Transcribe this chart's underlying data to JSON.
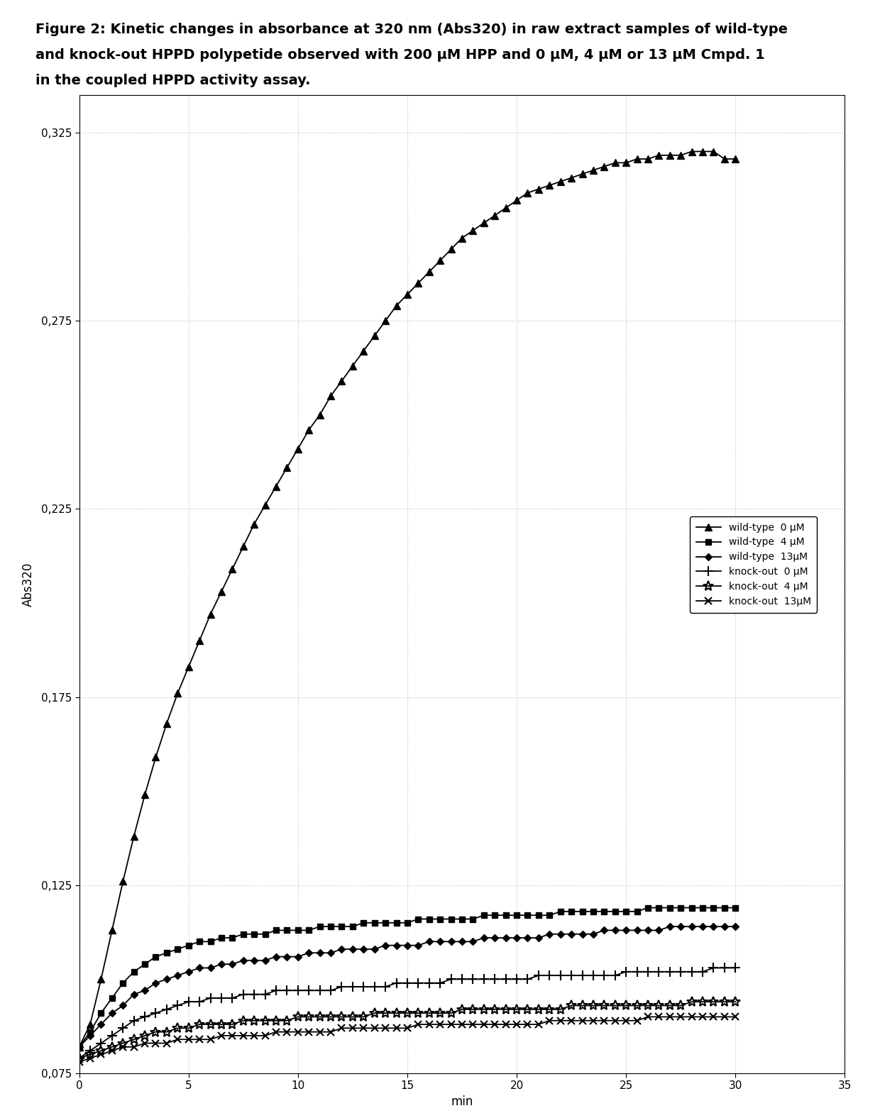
{
  "title_line1": "Figure 2: Kinetic changes in absorbance at 320 nm (Abs320) in raw extract samples of wild-type",
  "title_line2": "and knock-out HPPD polypetide observed with 200 μM HPP and 0 μM, 4 μM or 13 μM Cmpd. 1",
  "title_line3": "in the coupled HPPD activity assay.",
  "xlabel": "min",
  "ylabel": "Abs320",
  "xlim": [
    0,
    35
  ],
  "ylim": [
    0.075,
    0.335
  ],
  "yticks": [
    0.075,
    0.125,
    0.175,
    0.225,
    0.275,
    0.325
  ],
  "xticks": [
    0,
    5,
    10,
    15,
    20,
    25,
    30,
    35
  ],
  "series": [
    {
      "label": "wild-type  0 μM",
      "marker": "^",
      "color": "#000000",
      "x": [
        0,
        0.5,
        1,
        1.5,
        2,
        2.5,
        3,
        3.5,
        4,
        4.5,
        5,
        5.5,
        6,
        6.5,
        7,
        7.5,
        8,
        8.5,
        9,
        9.5,
        10,
        10.5,
        11,
        11.5,
        12,
        12.5,
        13,
        13.5,
        14,
        14.5,
        15,
        15.5,
        16,
        16.5,
        17,
        17.5,
        18,
        18.5,
        19,
        19.5,
        20,
        20.5,
        21,
        21.5,
        22,
        22.5,
        23,
        23.5,
        24,
        24.5,
        25,
        25.5,
        26,
        26.5,
        27,
        27.5,
        28,
        28.5,
        29,
        29.5,
        30
      ],
      "y": [
        0.082,
        0.088,
        0.1,
        0.113,
        0.126,
        0.138,
        0.149,
        0.159,
        0.168,
        0.176,
        0.183,
        0.19,
        0.197,
        0.203,
        0.209,
        0.215,
        0.221,
        0.226,
        0.231,
        0.236,
        0.241,
        0.246,
        0.25,
        0.255,
        0.259,
        0.263,
        0.267,
        0.271,
        0.275,
        0.279,
        0.282,
        0.285,
        0.288,
        0.291,
        0.294,
        0.297,
        0.299,
        0.301,
        0.303,
        0.305,
        0.307,
        0.309,
        0.31,
        0.311,
        0.312,
        0.313,
        0.314,
        0.315,
        0.316,
        0.317,
        0.317,
        0.318,
        0.318,
        0.319,
        0.319,
        0.319,
        0.32,
        0.32,
        0.32,
        0.318,
        0.318
      ]
    },
    {
      "label": "wild-type  4 μM",
      "marker": "s",
      "color": "#000000",
      "x": [
        0,
        0.5,
        1,
        1.5,
        2,
        2.5,
        3,
        3.5,
        4,
        4.5,
        5,
        5.5,
        6,
        6.5,
        7,
        7.5,
        8,
        8.5,
        9,
        9.5,
        10,
        10.5,
        11,
        11.5,
        12,
        12.5,
        13,
        13.5,
        14,
        14.5,
        15,
        15.5,
        16,
        16.5,
        17,
        17.5,
        18,
        18.5,
        19,
        19.5,
        20,
        20.5,
        21,
        21.5,
        22,
        22.5,
        23,
        23.5,
        24,
        24.5,
        25,
        25.5,
        26,
        26.5,
        27,
        27.5,
        28,
        28.5,
        29,
        29.5,
        30
      ],
      "y": [
        0.082,
        0.086,
        0.091,
        0.095,
        0.099,
        0.102,
        0.104,
        0.106,
        0.107,
        0.108,
        0.109,
        0.11,
        0.11,
        0.111,
        0.111,
        0.112,
        0.112,
        0.112,
        0.113,
        0.113,
        0.113,
        0.113,
        0.114,
        0.114,
        0.114,
        0.114,
        0.115,
        0.115,
        0.115,
        0.115,
        0.115,
        0.116,
        0.116,
        0.116,
        0.116,
        0.116,
        0.116,
        0.117,
        0.117,
        0.117,
        0.117,
        0.117,
        0.117,
        0.117,
        0.118,
        0.118,
        0.118,
        0.118,
        0.118,
        0.118,
        0.118,
        0.118,
        0.119,
        0.119,
        0.119,
        0.119,
        0.119,
        0.119,
        0.119,
        0.119,
        0.119
      ]
    },
    {
      "label": "wild-type  13μM",
      "marker": "D",
      "color": "#000000",
      "x": [
        0,
        0.5,
        1,
        1.5,
        2,
        2.5,
        3,
        3.5,
        4,
        4.5,
        5,
        5.5,
        6,
        6.5,
        7,
        7.5,
        8,
        8.5,
        9,
        9.5,
        10,
        10.5,
        11,
        11.5,
        12,
        12.5,
        13,
        13.5,
        14,
        14.5,
        15,
        15.5,
        16,
        16.5,
        17,
        17.5,
        18,
        18.5,
        19,
        19.5,
        20,
        20.5,
        21,
        21.5,
        22,
        22.5,
        23,
        23.5,
        24,
        24.5,
        25,
        25.5,
        26,
        26.5,
        27,
        27.5,
        28,
        28.5,
        29,
        29.5,
        30
      ],
      "y": [
        0.082,
        0.085,
        0.088,
        0.091,
        0.093,
        0.096,
        0.097,
        0.099,
        0.1,
        0.101,
        0.102,
        0.103,
        0.103,
        0.104,
        0.104,
        0.105,
        0.105,
        0.105,
        0.106,
        0.106,
        0.106,
        0.107,
        0.107,
        0.107,
        0.108,
        0.108,
        0.108,
        0.108,
        0.109,
        0.109,
        0.109,
        0.109,
        0.11,
        0.11,
        0.11,
        0.11,
        0.11,
        0.111,
        0.111,
        0.111,
        0.111,
        0.111,
        0.111,
        0.112,
        0.112,
        0.112,
        0.112,
        0.112,
        0.113,
        0.113,
        0.113,
        0.113,
        0.113,
        0.113,
        0.114,
        0.114,
        0.114,
        0.114,
        0.114,
        0.114,
        0.114
      ]
    },
    {
      "label": "knock-out  0 μM",
      "marker": "+",
      "color": "#000000",
      "x": [
        0,
        0.5,
        1,
        1.5,
        2,
        2.5,
        3,
        3.5,
        4,
        4.5,
        5,
        5.5,
        6,
        6.5,
        7,
        7.5,
        8,
        8.5,
        9,
        9.5,
        10,
        10.5,
        11,
        11.5,
        12,
        12.5,
        13,
        13.5,
        14,
        14.5,
        15,
        15.5,
        16,
        16.5,
        17,
        17.5,
        18,
        18.5,
        19,
        19.5,
        20,
        20.5,
        21,
        21.5,
        22,
        22.5,
        23,
        23.5,
        24,
        24.5,
        25,
        25.5,
        26,
        26.5,
        27,
        27.5,
        28,
        28.5,
        29,
        29.5,
        30
      ],
      "y": [
        0.079,
        0.081,
        0.083,
        0.085,
        0.087,
        0.089,
        0.09,
        0.091,
        0.092,
        0.093,
        0.094,
        0.094,
        0.095,
        0.095,
        0.095,
        0.096,
        0.096,
        0.096,
        0.097,
        0.097,
        0.097,
        0.097,
        0.097,
        0.097,
        0.098,
        0.098,
        0.098,
        0.098,
        0.098,
        0.099,
        0.099,
        0.099,
        0.099,
        0.099,
        0.1,
        0.1,
        0.1,
        0.1,
        0.1,
        0.1,
        0.1,
        0.1,
        0.101,
        0.101,
        0.101,
        0.101,
        0.101,
        0.101,
        0.101,
        0.101,
        0.102,
        0.102,
        0.102,
        0.102,
        0.102,
        0.102,
        0.102,
        0.102,
        0.103,
        0.103,
        0.103
      ]
    },
    {
      "label": "knock-out  4 μM",
      "marker": "*",
      "color": "#000000",
      "x": [
        0,
        0.5,
        1,
        1.5,
        2,
        2.5,
        3,
        3.5,
        4,
        4.5,
        5,
        5.5,
        6,
        6.5,
        7,
        7.5,
        8,
        8.5,
        9,
        9.5,
        10,
        10.5,
        11,
        11.5,
        12,
        12.5,
        13,
        13.5,
        14,
        14.5,
        15,
        15.5,
        16,
        16.5,
        17,
        17.5,
        18,
        18.5,
        19,
        19.5,
        20,
        20.5,
        21,
        21.5,
        22,
        22.5,
        23,
        23.5,
        24,
        24.5,
        25,
        25.5,
        26,
        26.5,
        27,
        27.5,
        28,
        28.5,
        29,
        29.5,
        30
      ],
      "y": [
        0.079,
        0.08,
        0.081,
        0.082,
        0.083,
        0.084,
        0.085,
        0.086,
        0.086,
        0.087,
        0.087,
        0.088,
        0.088,
        0.088,
        0.088,
        0.089,
        0.089,
        0.089,
        0.089,
        0.089,
        0.09,
        0.09,
        0.09,
        0.09,
        0.09,
        0.09,
        0.09,
        0.091,
        0.091,
        0.091,
        0.091,
        0.091,
        0.091,
        0.091,
        0.091,
        0.092,
        0.092,
        0.092,
        0.092,
        0.092,
        0.092,
        0.092,
        0.092,
        0.092,
        0.092,
        0.093,
        0.093,
        0.093,
        0.093,
        0.093,
        0.093,
        0.093,
        0.093,
        0.093,
        0.093,
        0.093,
        0.094,
        0.094,
        0.094,
        0.094,
        0.094
      ]
    },
    {
      "label": "knock-out  13μM",
      "marker": "x",
      "color": "#000000",
      "x": [
        0,
        0.5,
        1,
        1.5,
        2,
        2.5,
        3,
        3.5,
        4,
        4.5,
        5,
        5.5,
        6,
        6.5,
        7,
        7.5,
        8,
        8.5,
        9,
        9.5,
        10,
        10.5,
        11,
        11.5,
        12,
        12.5,
        13,
        13.5,
        14,
        14.5,
        15,
        15.5,
        16,
        16.5,
        17,
        17.5,
        18,
        18.5,
        19,
        19.5,
        20,
        20.5,
        21,
        21.5,
        22,
        22.5,
        23,
        23.5,
        24,
        24.5,
        25,
        25.5,
        26,
        26.5,
        27,
        27.5,
        28,
        28.5,
        29,
        29.5,
        30
      ],
      "y": [
        0.078,
        0.079,
        0.08,
        0.081,
        0.082,
        0.082,
        0.083,
        0.083,
        0.083,
        0.084,
        0.084,
        0.084,
        0.084,
        0.085,
        0.085,
        0.085,
        0.085,
        0.085,
        0.086,
        0.086,
        0.086,
        0.086,
        0.086,
        0.086,
        0.087,
        0.087,
        0.087,
        0.087,
        0.087,
        0.087,
        0.087,
        0.088,
        0.088,
        0.088,
        0.088,
        0.088,
        0.088,
        0.088,
        0.088,
        0.088,
        0.088,
        0.088,
        0.088,
        0.089,
        0.089,
        0.089,
        0.089,
        0.089,
        0.089,
        0.089,
        0.089,
        0.089,
        0.09,
        0.09,
        0.09,
        0.09,
        0.09,
        0.09,
        0.09,
        0.09,
        0.09
      ]
    }
  ]
}
